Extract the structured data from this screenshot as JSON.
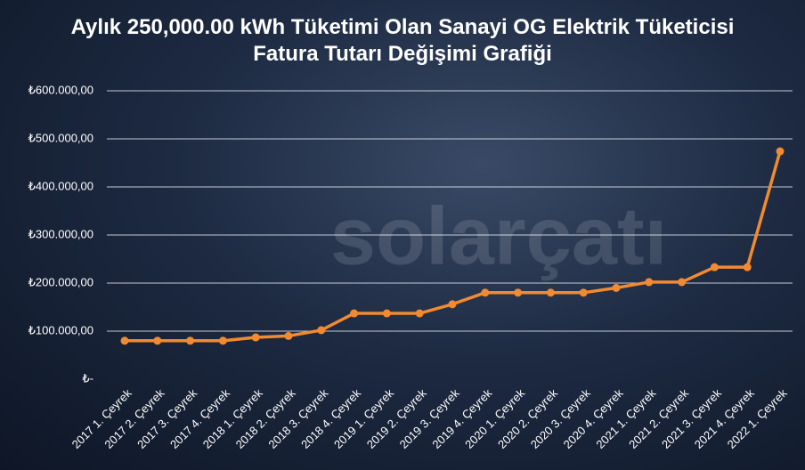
{
  "chart_data": {
    "type": "line",
    "title": "Aylık 250,000.00 kWh Tüketimi Olan Sanayi OG Elektrik Tüketicisi Fatura Tutarı Değişimi Grafiği",
    "watermark": "solarçatı",
    "categories": [
      "2017 1. Çeyrek",
      "2017 2. Çeyrek",
      "2017 3. Çeyrek",
      "2017 4. Çeyrek",
      "2018 1. Çeyrek",
      "2018 2. Çeyrek",
      "2018 3. Çeyrek",
      "2018 4. Çeyrek",
      "2019 1. Çeyrek",
      "2019 2. Çeyrek",
      "2019 3. Çeyrek",
      "2019 4. Çeyrek",
      "2020 1. Çeyrek",
      "2020 2. Çeyrek",
      "2020 3. Çeyrek",
      "2020 4. Çeyrek",
      "2021 1. Çeyrek",
      "2021 2. Çeyrek",
      "2021 3. Çeyrek",
      "2021 4. Çeyrek",
      "2022 1. Çeyrek"
    ],
    "values": [
      80000,
      80000,
      80000,
      80000,
      87000,
      90000,
      102000,
      137000,
      137000,
      137000,
      156000,
      180000,
      180000,
      180000,
      180000,
      190000,
      202000,
      202000,
      233000,
      233000,
      474000
    ],
    "color": "#f28a30",
    "ylim": [
      0,
      600000
    ],
    "yticks": [
      {
        "value": 0,
        "label": "₺-"
      },
      {
        "value": 100000,
        "label": "₺100.000,00"
      },
      {
        "value": 200000,
        "label": "₺200.000,00"
      },
      {
        "value": 300000,
        "label": "₺300.000,00"
      },
      {
        "value": 400000,
        "label": "₺400.000,00"
      },
      {
        "value": 500000,
        "label": "₺500.000,00"
      },
      {
        "value": 600000,
        "label": "₺600.000,00"
      }
    ],
    "grid": true
  }
}
